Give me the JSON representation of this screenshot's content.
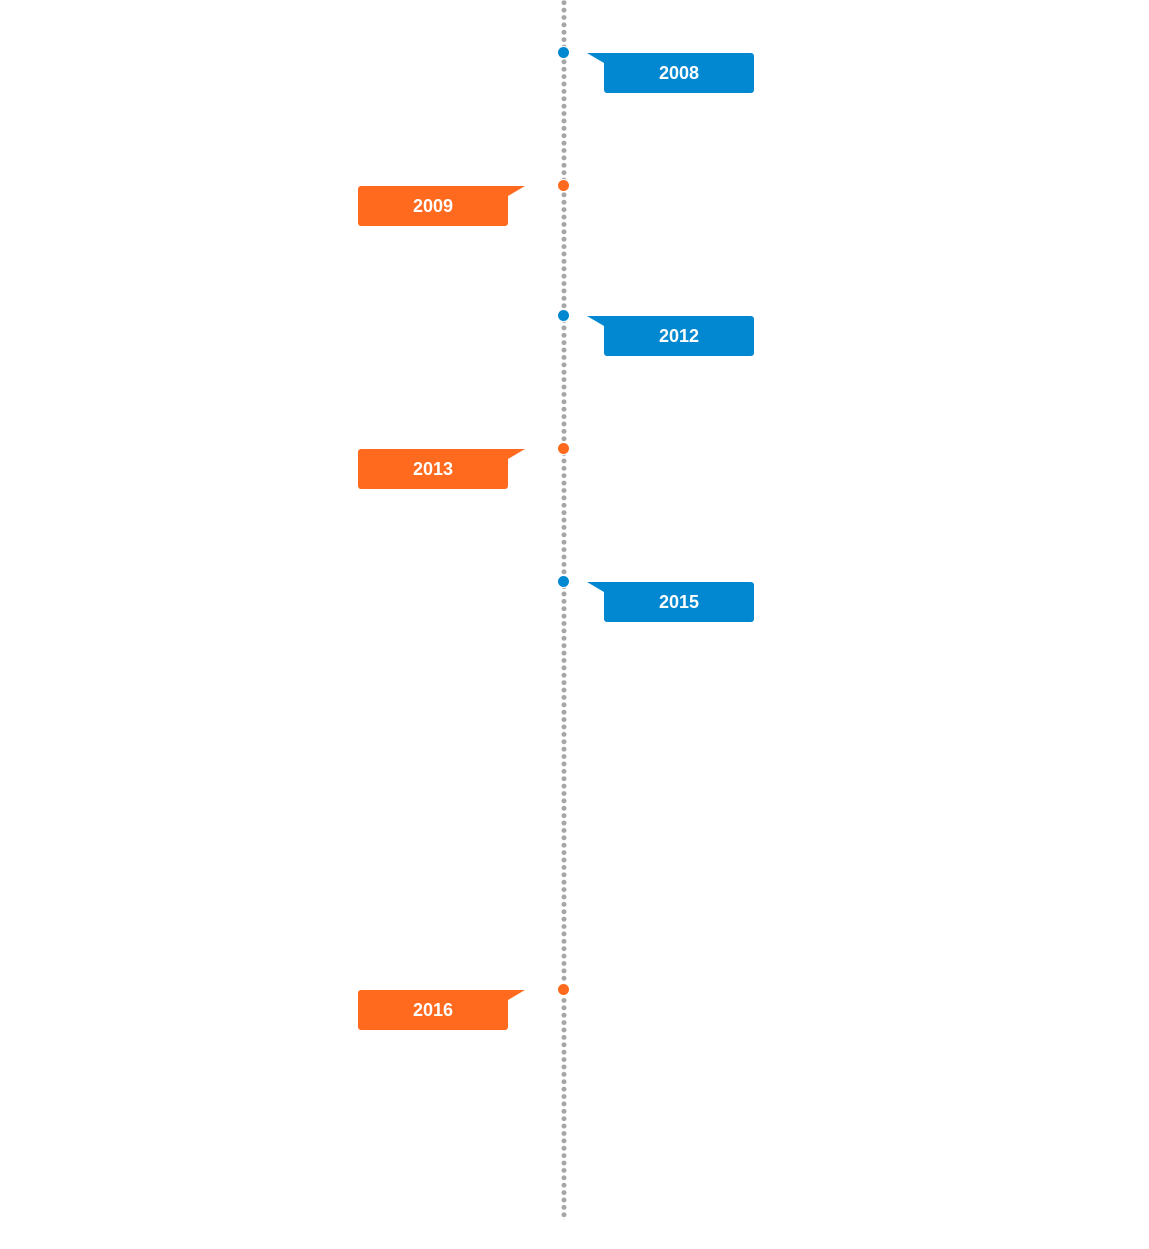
{
  "colors": {
    "blue": "#0288d1",
    "orange": "#ff6a1f",
    "line": "#a6a6a6"
  },
  "timeline": {
    "events": [
      {
        "year": "2008",
        "side": "right",
        "color": "blue"
      },
      {
        "year": "2009",
        "side": "left",
        "color": "orange"
      },
      {
        "year": "2012",
        "side": "right",
        "color": "blue"
      },
      {
        "year": "2013",
        "side": "left",
        "color": "orange"
      },
      {
        "year": "2015",
        "side": "right",
        "color": "blue"
      },
      {
        "year": "2016",
        "side": "left",
        "color": "orange"
      }
    ]
  }
}
